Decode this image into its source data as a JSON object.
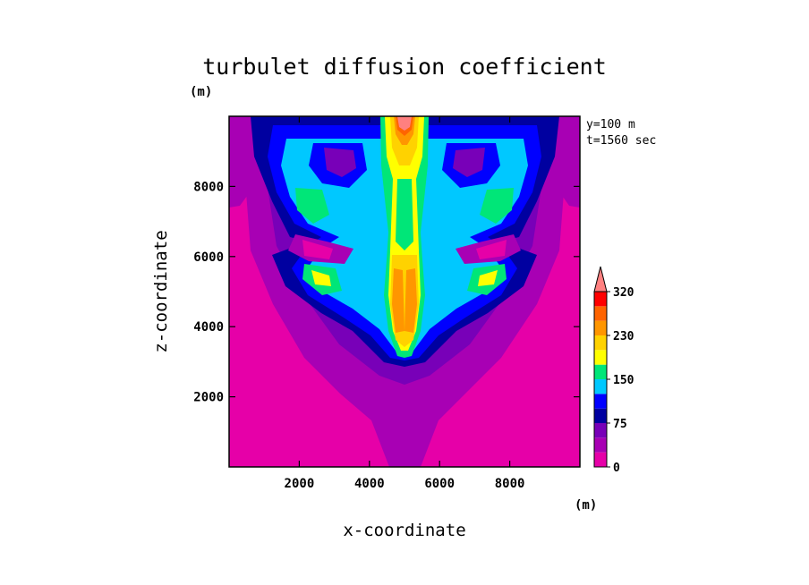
{
  "chart_data": {
    "type": "heatmap",
    "title": "turbulet diffusion coefficient",
    "xlabel": "x-coordinate",
    "ylabel": "z-coordinate",
    "x_unit": "(m)",
    "y_unit": "(m)",
    "xlim": [
      0,
      10000
    ],
    "ylim": [
      0,
      10000
    ],
    "x_ticks": [
      2000,
      4000,
      6000,
      8000
    ],
    "y_ticks": [
      2000,
      4000,
      6000,
      8000
    ],
    "x_tick_labels": [
      "2000",
      "4000",
      "6000",
      "8000"
    ],
    "y_tick_labels": [
      "2000",
      "4000",
      "6000",
      "8000"
    ],
    "annotations": [
      "y=100 m",
      "t=1560 sec"
    ],
    "colorbar": {
      "levels": [
        0,
        25,
        50,
        75,
        100,
        125,
        150,
        180,
        205,
        230,
        255,
        290,
        320
      ],
      "tick_values": [
        0,
        75,
        150,
        230,
        320
      ],
      "tick_labels": [
        "0",
        "75",
        "150",
        "230",
        "320"
      ],
      "colors": [
        "#e600a8",
        "#a800b4",
        "#7800b8",
        "#0000a0",
        "#0000ff",
        "#00c8ff",
        "#00e678",
        "#ffff00",
        "#ffd200",
        "#ff9600",
        "#ff6400",
        "#ff0000",
        "#ff8080"
      ],
      "extend": "max"
    },
    "field_description_values": {
      "background": 20,
      "plume_core_max": 330
    }
  }
}
